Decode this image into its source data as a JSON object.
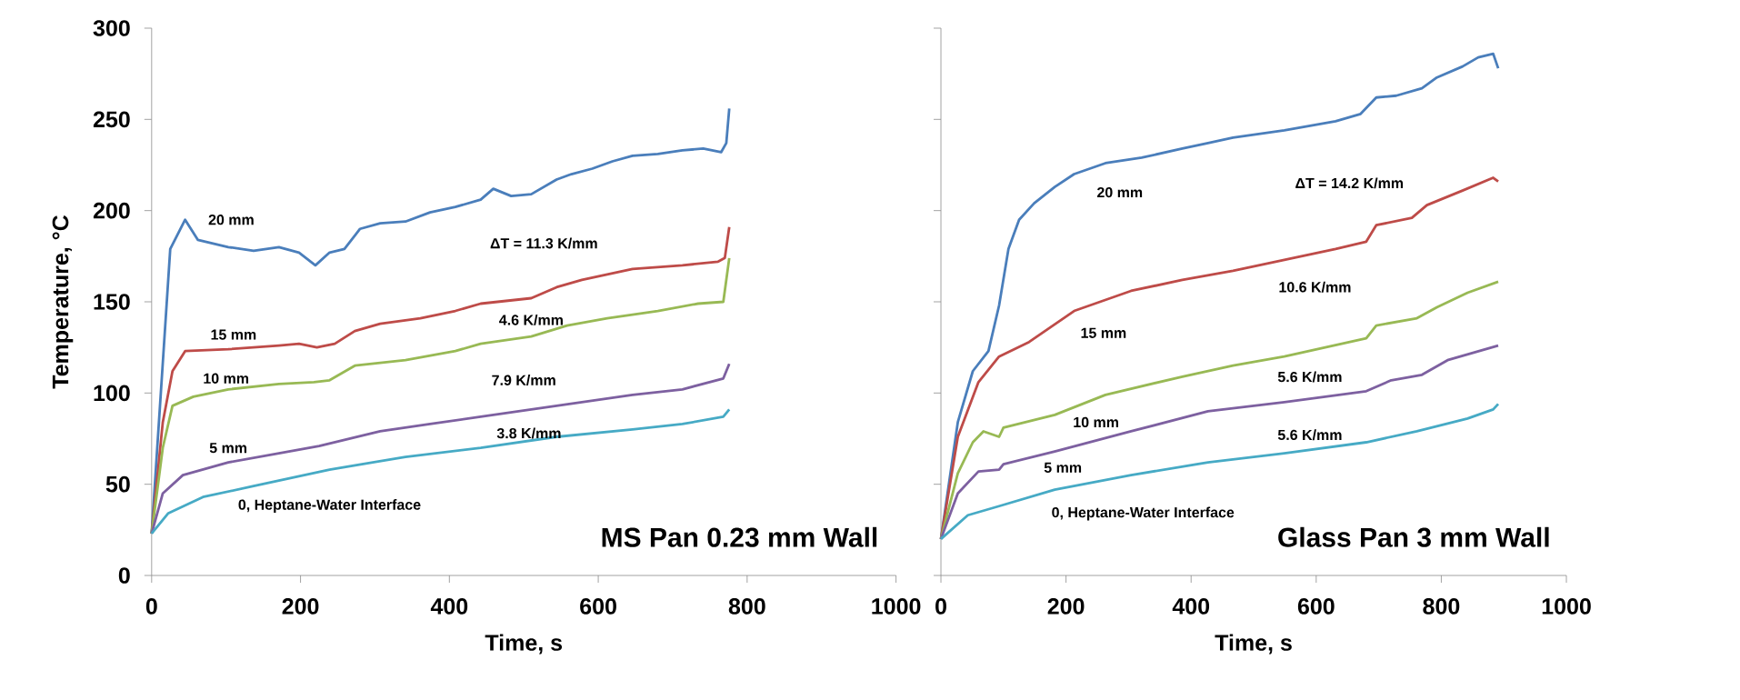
{
  "chart_data": [
    {
      "type": "line",
      "title": "MS Pan 0.23 mm Wall",
      "xlabel": "Time, s",
      "ylabel": "Temperature, °C",
      "xlim": [
        0,
        1000
      ],
      "ylim": [
        0,
        300
      ],
      "xticks": [
        0,
        200,
        400,
        600,
        800,
        1000
      ],
      "yticks": [
        0,
        50,
        100,
        150,
        200,
        250,
        300
      ],
      "grid": false,
      "marker": "none",
      "line_style": "solid",
      "series": [
        {
          "color": "#4a7ebb",
          "x": [
            0,
            25,
            45,
            62,
            103,
            137,
            171,
            198,
            220,
            239,
            259,
            280,
            307,
            341,
            374,
            408,
            442,
            459,
            483,
            510,
            544,
            564,
            592,
            619,
            646,
            680,
            713,
            741,
            765,
            772,
            776
          ],
          "values": [
            23,
            179,
            195,
            184,
            180,
            178,
            180,
            177,
            170,
            177,
            179,
            190,
            193,
            194,
            199,
            202,
            206,
            212,
            208,
            209,
            217,
            220,
            223,
            227,
            230,
            231,
            233,
            234,
            232,
            237,
            256
          ]
        },
        {
          "color": "#be4b48",
          "x": [
            0,
            15,
            28,
            45,
            103,
            171,
            198,
            222,
            246,
            273,
            307,
            361,
            408,
            442,
            510,
            544,
            578,
            612,
            646,
            713,
            761,
            770,
            776
          ],
          "values": [
            23,
            84,
            112,
            123,
            124,
            126,
            127,
            125,
            127,
            134,
            138,
            141,
            145,
            149,
            152,
            158,
            162,
            165,
            168,
            170,
            172,
            174,
            191
          ]
        },
        {
          "color": "#98b954",
          "x": [
            0,
            15,
            28,
            56,
            103,
            171,
            218,
            239,
            273,
            341,
            408,
            442,
            510,
            558,
            612,
            680,
            734,
            768,
            776
          ],
          "values": [
            23,
            70,
            93,
            98,
            102,
            105,
            106,
            107,
            115,
            118,
            123,
            127,
            131,
            137,
            141,
            145,
            149,
            150,
            174
          ]
        },
        {
          "color": "#7d60a0",
          "x": [
            0,
            15,
            42,
            103,
            171,
            225,
            307,
            374,
            442,
            510,
            578,
            646,
            713,
            768,
            776
          ],
          "values": [
            23,
            45,
            55,
            62,
            67,
            71,
            79,
            83,
            87,
            91,
            95,
            99,
            102,
            108,
            116
          ]
        },
        {
          "color": "#46aac5",
          "x": [
            0,
            22,
            69,
            137,
            239,
            341,
            442,
            544,
            646,
            713,
            768,
            776
          ],
          "values": [
            23,
            34,
            43,
            49,
            58,
            65,
            70,
            76,
            80,
            83,
            87,
            91
          ]
        }
      ],
      "annotations": [
        "20 mm",
        "ΔT = 11.3 K/mm",
        "15 mm",
        "4.6 K/mm",
        "10 mm",
        "7.9 K/mm",
        "5 mm",
        "3.8 K/mm",
        "0, Heptane-Water Interface"
      ]
    },
    {
      "type": "line",
      "title": "Glass Pan 3 mm Wall",
      "xlabel": "Time, s",
      "xlim": [
        0,
        1000
      ],
      "ylim": [
        0,
        300
      ],
      "xticks": [
        0,
        200,
        400,
        600,
        800,
        1000
      ],
      "yticks": [
        0,
        50,
        100,
        150,
        200,
        250,
        300
      ],
      "tick_labels": "x",
      "grid": false,
      "marker": "none",
      "line_style": "solid",
      "series": [
        {
          "color": "#4a7ebb",
          "x": [
            0,
            27,
            51,
            76,
            93,
            108,
            125,
            149,
            182,
            213,
            263,
            321,
            386,
            427,
            467,
            549,
            631,
            671,
            696,
            728,
            769,
            793,
            834,
            859,
            883,
            891
          ],
          "values": [
            20,
            84,
            112,
            123,
            148,
            179,
            195,
            204,
            213,
            220,
            226,
            229,
            234,
            237,
            240,
            244,
            249,
            253,
            262,
            263,
            267,
            273,
            279,
            284,
            286,
            278
          ]
        },
        {
          "color": "#be4b48",
          "x": [
            0,
            27,
            60,
            93,
            141,
            213,
            304,
            386,
            467,
            549,
            631,
            680,
            696,
            753,
            777,
            834,
            883,
            891
          ],
          "values": [
            20,
            76,
            106,
            120,
            128,
            145,
            156,
            162,
            167,
            173,
            179,
            183,
            192,
            196,
            203,
            211,
            218,
            216
          ]
        },
        {
          "color": "#98b954",
          "x": [
            0,
            27,
            51,
            68,
            93,
            100,
            182,
            263,
            386,
            467,
            549,
            680,
            696,
            761,
            793,
            842,
            891
          ],
          "values": [
            20,
            56,
            73,
            79,
            76,
            81,
            88,
            99,
            109,
            115,
            120,
            130,
            137,
            141,
            147,
            155,
            161
          ]
        },
        {
          "color": "#7d60a0",
          "x": [
            0,
            27,
            60,
            93,
            100,
            182,
            304,
            427,
            549,
            680,
            720,
            769,
            810,
            891
          ],
          "values": [
            20,
            45,
            57,
            58,
            61,
            68,
            79,
            90,
            95,
            101,
            107,
            110,
            118,
            126
          ]
        },
        {
          "color": "#46aac5",
          "x": [
            0,
            43,
            93,
            182,
            304,
            427,
            549,
            680,
            761,
            842,
            883,
            891
          ],
          "values": [
            20,
            33,
            38,
            47,
            55,
            62,
            67,
            73,
            79,
            86,
            91,
            94
          ]
        }
      ],
      "annotations": [
        "20 mm",
        "ΔT = 14.2 K/mm",
        "10.6 K/mm",
        "15 mm",
        "5.6 K/mm",
        "10 mm",
        "5.6 K/mm",
        "5 mm",
        "0, Heptane-Water Interface"
      ]
    }
  ]
}
